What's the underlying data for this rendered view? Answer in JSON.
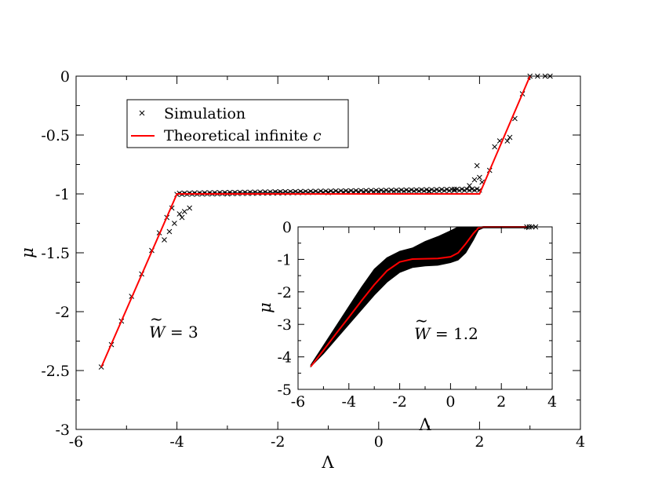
{
  "chart_data": [
    {
      "type": "scatter",
      "xlabel": "Λ",
      "ylabel": "μ",
      "xlim": [
        -6,
        4
      ],
      "ylim": [
        -3,
        0
      ],
      "xticks": [
        -6,
        -4,
        -2,
        0,
        2,
        4
      ],
      "yticks": [
        0,
        -0.5,
        -1,
        -1.5,
        -2,
        -2.5,
        -3
      ],
      "xtick_labels": [
        "-6",
        "-4",
        "-2",
        "0",
        "2",
        "4"
      ],
      "ytick_labels": [
        "0",
        "-0.5",
        "-1",
        "-1.5",
        "-2",
        "-2.5",
        "-3"
      ],
      "legend": {
        "placement": "top-left",
        "simulation_label": "Simulation",
        "theory_label_prefix": "Theoretical infinite ",
        "theory_label_var": "c"
      },
      "annotation": {
        "symbol": "W",
        "rest": " = 3"
      },
      "series": [
        {
          "name": "Theoretical infinite c",
          "kind": "line",
          "color": "#ff0000",
          "x": [
            -5.5,
            -4.0,
            2.0,
            3.0
          ],
          "y": [
            -2.47,
            -1.0,
            -1.0,
            0.0
          ]
        },
        {
          "name": "Simulation",
          "kind": "scatter",
          "marker": "x",
          "color": "#000000",
          "x": [
            -5.5,
            -5.3,
            -5.1,
            -4.9,
            -4.7,
            -4.5,
            -4.35,
            -4.2,
            -4.1,
            -4.25,
            -4.15,
            -4.05,
            -3.9,
            -3.75,
            -3.85,
            -3.95,
            -3.0,
            -2.0,
            -1.0,
            0.0,
            1.0,
            1.5,
            1.8,
            1.9,
            2.0,
            2.05,
            1.95,
            2.2,
            2.3,
            2.4,
            2.6,
            2.7,
            2.55,
            2.85,
            3.0,
            3.15,
            3.3,
            3.4
          ],
          "y": [
            -2.47,
            -2.28,
            -2.08,
            -1.87,
            -1.68,
            -1.48,
            -1.33,
            -1.2,
            -1.12,
            -1.39,
            -1.32,
            -1.25,
            -1.2,
            -1.12,
            -1.15,
            -1.17,
            -1.0,
            -0.99,
            -0.99,
            -0.98,
            -0.98,
            -0.96,
            -0.93,
            -0.88,
            -0.86,
            -0.9,
            -0.76,
            -0.8,
            -0.6,
            -0.55,
            -0.52,
            -0.36,
            -0.55,
            -0.15,
            0.0,
            0.0,
            0.0,
            0.0
          ]
        }
      ]
    },
    {
      "type": "scatter",
      "inset": true,
      "xlabel": "Λ",
      "ylabel": "μ",
      "xlim": [
        -6,
        4
      ],
      "ylim": [
        -5,
        0
      ],
      "xticks": [
        -6,
        -4,
        -2,
        0,
        2,
        4
      ],
      "yticks": [
        0,
        -1,
        -2,
        -3,
        -4,
        -5
      ],
      "xtick_labels": [
        "-6",
        "-4",
        "-2",
        "0",
        "2",
        "4"
      ],
      "ytick_labels": [
        "0",
        "-1",
        "-2",
        "-3",
        "-4",
        "-5"
      ],
      "annotation": {
        "symbol": "W",
        "rest": " = 1.2"
      },
      "series": [
        {
          "name": "Theoretical infinite c",
          "kind": "line",
          "color": "#ff0000",
          "x": [
            -5.5,
            -5.0,
            -4.5,
            -4.0,
            -3.5,
            -3.0,
            -2.5,
            -2.0,
            -1.5,
            -1.0,
            -0.5,
            0.0,
            0.3,
            0.6,
            0.9,
            1.1,
            1.3,
            2.0,
            2.5,
            3.0
          ],
          "y": [
            -4.3,
            -3.8,
            -3.28,
            -2.78,
            -2.27,
            -1.78,
            -1.35,
            -1.08,
            -0.99,
            -0.98,
            -0.97,
            -0.92,
            -0.8,
            -0.52,
            -0.2,
            -0.03,
            0.0,
            0.0,
            0.0,
            0.0
          ]
        },
        {
          "name": "Simulation",
          "kind": "band",
          "color": "#000000",
          "x": [
            -5.5,
            -5.0,
            -4.5,
            -4.0,
            -3.5,
            -3.0,
            -2.5,
            -2.0,
            -1.5,
            -1.0,
            -0.5,
            0.0,
            0.3,
            0.6,
            0.9,
            1.1,
            1.3,
            2.0,
            3.0
          ],
          "upper": [
            -4.25,
            -3.65,
            -3.05,
            -2.45,
            -1.85,
            -1.3,
            -0.95,
            -0.75,
            -0.65,
            -0.45,
            -0.3,
            -0.12,
            0.0,
            0.0,
            0.0,
            0.0,
            0.0,
            0.0,
            0.0
          ],
          "lower": [
            -4.3,
            -3.9,
            -3.45,
            -3.0,
            -2.55,
            -2.1,
            -1.7,
            -1.4,
            -1.25,
            -1.2,
            -1.18,
            -1.1,
            -1.02,
            -0.8,
            -0.4,
            -0.1,
            -0.03,
            -0.03,
            -0.03
          ]
        },
        {
          "name": "Simulation",
          "kind": "scatter",
          "marker": "x",
          "color": "#000000",
          "x": [
            3.0,
            3.1,
            3.2,
            3.35
          ],
          "y": [
            0.0,
            0.0,
            0.0,
            0.0
          ]
        }
      ]
    }
  ]
}
